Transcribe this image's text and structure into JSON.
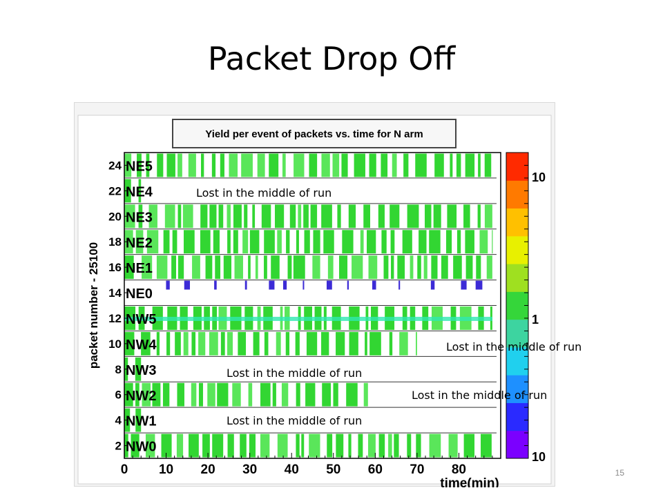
{
  "slide": {
    "title": "Packet Drop Off",
    "page_number": "15"
  },
  "annotations": [
    "Lost in the middle of run",
    "Lost in the middle of run",
    "Lost in the middle of run",
    "Lost in the middle of run",
    "Lost in the middle of run"
  ],
  "chart_data": {
    "type": "heatmap",
    "title": "Yield per event of packets vs. time for N arm",
    "xlabel": "time(min)",
    "ylabel": "packet number - 25100",
    "xlim": [
      0,
      90
    ],
    "ylim": [
      1,
      25
    ],
    "x_ticks": [
      "0",
      "10",
      "20",
      "30",
      "40",
      "50",
      "60",
      "70",
      "80"
    ],
    "y_ticks": [
      "2",
      "4",
      "6",
      "8",
      "10",
      "12",
      "14",
      "16",
      "18",
      "20",
      "22",
      "24"
    ],
    "row_labels": [
      "NE5",
      "NE4",
      "NE3",
      "NE2",
      "NE1",
      "NE0",
      "NW5",
      "NW4",
      "NW3",
      "NW2",
      "NW1",
      "NW0"
    ],
    "color_scale": {
      "type": "log",
      "ticks": [
        "10",
        "1",
        "10"
      ],
      "colors": [
        "#7b00ff",
        "#2a2aff",
        "#1e90ff",
        "#20d0ee",
        "#3dd4a0",
        "#35d63a",
        "#9fe020",
        "#e8f000",
        "#ffc000",
        "#ff7a00",
        "#ff2a00"
      ]
    },
    "colors": {
      "green": "#32d632",
      "light_green": "#5ae65a",
      "cyan_green": "#2ee8b0",
      "blue": "#3c2bd6"
    },
    "rows": [
      {
        "label": "NE5",
        "status": "full",
        "end_time": 88
      },
      {
        "label": "NE4",
        "status": "lost",
        "end_time": 4
      },
      {
        "label": "NE3",
        "status": "full",
        "end_time": 88
      },
      {
        "label": "NE2",
        "status": "full",
        "end_time": 88
      },
      {
        "label": "NE1",
        "status": "full",
        "end_time": 88
      },
      {
        "label": "NE0",
        "status": "low",
        "end_time": 88
      },
      {
        "label": "NW5",
        "status": "full",
        "end_time": 88
      },
      {
        "label": "NW4",
        "status": "lost",
        "end_time": 70
      },
      {
        "label": "NW3",
        "status": "lost",
        "end_time": 4
      },
      {
        "label": "NW2",
        "status": "lost",
        "end_time": 59
      },
      {
        "label": "NW1",
        "status": "lost",
        "end_time": 4
      },
      {
        "label": "NW0",
        "status": "full",
        "end_time": 88
      }
    ]
  }
}
